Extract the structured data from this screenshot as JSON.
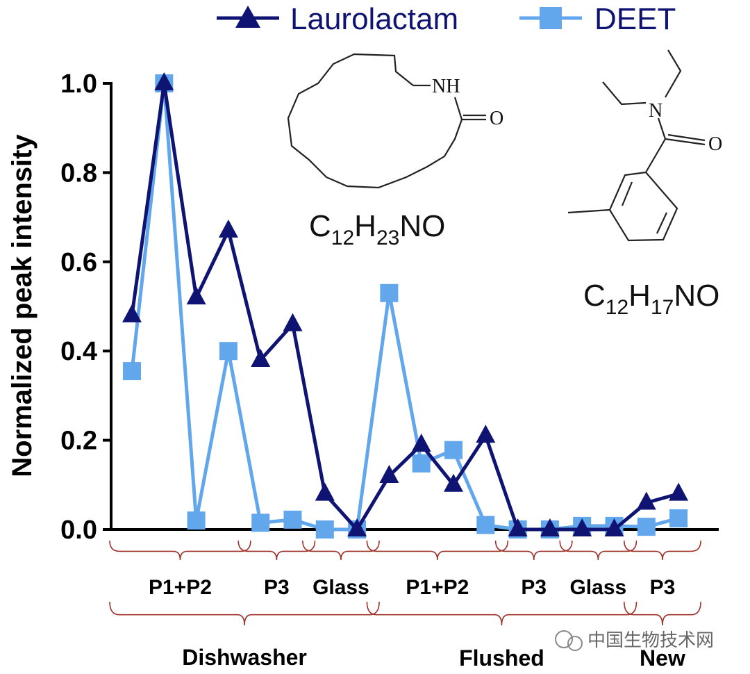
{
  "chart_data": {
    "type": "line",
    "ylabel": "Normalized peak intensity",
    "ylim": [
      0,
      1.0
    ],
    "yticks": [
      "0.0",
      "0.2",
      "0.4",
      "0.6",
      "0.8",
      "1.0"
    ],
    "ytick_values": [
      0,
      0.2,
      0.4,
      0.6,
      0.8,
      1.0
    ],
    "legend_position": "top",
    "series": [
      {
        "name": "Laurolactam",
        "marker": "triangle",
        "color": "#0f1472",
        "values": [
          0.48,
          1.0,
          0.52,
          0.67,
          0.38,
          0.46,
          0.08,
          0.0,
          0.12,
          0.19,
          0.1,
          0.21,
          0.0,
          0.0,
          0.0,
          0.0,
          0.06,
          0.08
        ]
      },
      {
        "name": "DEET",
        "marker": "square",
        "color": "#62a6ec",
        "values": [
          0.355,
          1.0,
          0.02,
          0.4,
          0.015,
          0.022,
          0.0,
          0.0,
          0.53,
          0.148,
          0.178,
          0.01,
          0.0,
          0.0,
          0.008,
          0.008,
          0.006,
          0.025
        ]
      }
    ],
    "groups_level1": [
      {
        "label": "P1+P2",
        "from": 0,
        "to": 3
      },
      {
        "label": "P3",
        "from": 4,
        "to": 5
      },
      {
        "label": "Glass",
        "from": 6,
        "to": 7
      },
      {
        "label": "P1+P2",
        "from": 8,
        "to": 11
      },
      {
        "label": "P3",
        "from": 12,
        "to": 13
      },
      {
        "label": "Glass",
        "from": 14,
        "to": 15
      },
      {
        "label": "P3",
        "from": 16,
        "to": 17
      }
    ],
    "groups_level2": [
      {
        "label": "Dishwasher",
        "from": 0,
        "to": 7
      },
      {
        "label": "Flushed",
        "from": 8,
        "to": 15
      },
      {
        "label": "New",
        "from": 16,
        "to": 17
      }
    ],
    "annotations": {
      "laurolactam_formula": [
        "C",
        "12",
        "H",
        "23",
        "NO"
      ],
      "deet_formula": [
        "C",
        "12",
        "H",
        "17",
        "NO"
      ],
      "atom_nh": "NH",
      "atom_o": "O",
      "atom_n": "N"
    }
  },
  "watermark": "中国生物技术网",
  "colors": {
    "laurolactam": "#0f1472",
    "deet": "#62a6ec",
    "bracket": "#a0322c"
  }
}
